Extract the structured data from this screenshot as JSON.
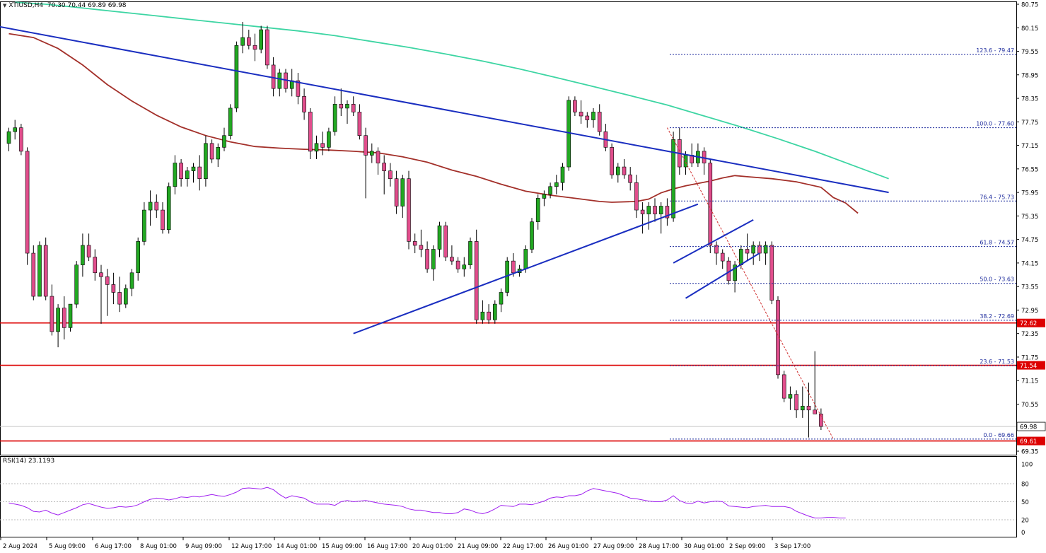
{
  "chart_data": {
    "type": "candlestick",
    "symbol": "XTIUSD,H4",
    "header_ohlc": "70.30 70.44 69.89 69.98",
    "price_axis": {
      "ylim": [
        69.35,
        80.75
      ],
      "ticks": [
        "80.75",
        "80.15",
        "79.55",
        "78.95",
        "78.35",
        "77.75",
        "77.15",
        "76.55",
        "75.95",
        "75.35",
        "74.75",
        "74.15",
        "73.55",
        "72.95",
        "72.35",
        "71.75",
        "71.15",
        "70.55",
        "69.95",
        "69.35"
      ]
    },
    "x_labels": [
      "2 Aug 2024",
      "5 Aug 09:00",
      "6 Aug 17:00",
      "8 Aug 01:00",
      "9 Aug 09:00",
      "12 Aug 17:00",
      "14 Aug 01:00",
      "15 Aug 09:00",
      "16 Aug 17:00",
      "20 Aug 01:00",
      "21 Aug 09:00",
      "22 Aug 17:00",
      "26 Aug 01:00",
      "27 Aug 09:00",
      "28 Aug 17:00",
      "30 Aug 01:00",
      "2 Sep 09:00",
      "3 Sep 17:00"
    ],
    "candles": [
      [
        77.2,
        77.6,
        77.0,
        77.5
      ],
      [
        77.5,
        77.8,
        77.3,
        77.6
      ],
      [
        77.6,
        77.7,
        76.9,
        77.0
      ],
      [
        77.0,
        77.1,
        74.1,
        74.4
      ],
      [
        74.4,
        74.6,
        73.2,
        73.3
      ],
      [
        73.3,
        74.7,
        73.3,
        74.6
      ],
      [
        74.6,
        74.8,
        73.2,
        73.3
      ],
      [
        73.3,
        73.6,
        72.3,
        72.4
      ],
      [
        72.4,
        73.1,
        72.0,
        73.0
      ],
      [
        73.0,
        73.3,
        72.2,
        72.5
      ],
      [
        72.5,
        73.1,
        72.4,
        73.1
      ],
      [
        73.1,
        74.2,
        73.0,
        74.1
      ],
      [
        74.1,
        74.9,
        73.8,
        74.6
      ],
      [
        74.6,
        74.9,
        74.2,
        74.3
      ],
      [
        74.3,
        74.5,
        73.7,
        73.9
      ],
      [
        73.9,
        74.1,
        72.6,
        73.8
      ],
      [
        73.8,
        74.0,
        72.8,
        73.6
      ],
      [
        73.6,
        73.9,
        73.1,
        73.4
      ],
      [
        73.4,
        73.8,
        72.9,
        73.1
      ],
      [
        73.1,
        73.6,
        73.0,
        73.5
      ],
      [
        73.5,
        74.0,
        73.3,
        73.9
      ],
      [
        73.9,
        74.8,
        73.7,
        74.7
      ],
      [
        74.7,
        75.7,
        74.6,
        75.5
      ],
      [
        75.5,
        76.0,
        75.1,
        75.7
      ],
      [
        75.7,
        75.9,
        75.3,
        75.5
      ],
      [
        75.5,
        75.7,
        74.9,
        75.0
      ],
      [
        75.0,
        76.2,
        74.9,
        76.1
      ],
      [
        76.1,
        76.9,
        75.9,
        76.7
      ],
      [
        76.7,
        76.8,
        76.1,
        76.3
      ],
      [
        76.3,
        76.6,
        76.1,
        76.5
      ],
      [
        76.5,
        76.7,
        76.2,
        76.6
      ],
      [
        76.6,
        76.9,
        76.0,
        76.3
      ],
      [
        76.3,
        77.4,
        76.1,
        77.2
      ],
      [
        77.2,
        77.3,
        76.7,
        76.8
      ],
      [
        76.8,
        77.2,
        76.6,
        77.1
      ],
      [
        77.1,
        77.6,
        77.0,
        77.4
      ],
      [
        77.4,
        78.2,
        77.3,
        78.1
      ],
      [
        78.1,
        79.8,
        78.0,
        79.7
      ],
      [
        79.7,
        80.3,
        79.5,
        79.9
      ],
      [
        79.9,
        80.1,
        79.6,
        79.7
      ],
      [
        79.7,
        80.0,
        79.3,
        79.6
      ],
      [
        79.6,
        80.2,
        79.5,
        80.1
      ],
      [
        80.1,
        80.2,
        79.1,
        79.2
      ],
      [
        79.2,
        79.4,
        78.4,
        78.6
      ],
      [
        78.6,
        79.1,
        78.4,
        79.0
      ],
      [
        79.0,
        79.1,
        78.5,
        78.6
      ],
      [
        78.6,
        79.1,
        78.4,
        78.8
      ],
      [
        78.8,
        79.0,
        78.2,
        78.4
      ],
      [
        78.4,
        78.6,
        77.8,
        78.0
      ],
      [
        78.0,
        78.1,
        76.8,
        77.0
      ],
      [
        77.0,
        77.4,
        76.8,
        77.2
      ],
      [
        77.2,
        77.5,
        76.9,
        77.1
      ],
      [
        77.1,
        77.6,
        77.0,
        77.5
      ],
      [
        77.5,
        78.4,
        77.4,
        78.2
      ],
      [
        78.2,
        78.6,
        77.9,
        78.1
      ],
      [
        78.1,
        78.3,
        77.7,
        78.2
      ],
      [
        78.2,
        78.4,
        77.9,
        78.0
      ],
      [
        78.0,
        78.2,
        77.3,
        77.4
      ],
      [
        77.4,
        77.6,
        75.8,
        76.9
      ],
      [
        76.9,
        77.2,
        76.7,
        77.0
      ],
      [
        77.0,
        77.1,
        76.4,
        76.7
      ],
      [
        76.7,
        76.9,
        75.9,
        76.5
      ],
      [
        76.5,
        76.7,
        76.1,
        76.3
      ],
      [
        76.3,
        76.5,
        75.4,
        75.6
      ],
      [
        75.6,
        76.4,
        75.3,
        76.3
      ],
      [
        76.3,
        76.5,
        74.5,
        74.7
      ],
      [
        74.7,
        74.9,
        74.4,
        74.6
      ],
      [
        74.6,
        75.0,
        74.3,
        74.5
      ],
      [
        74.5,
        74.7,
        73.9,
        74.0
      ],
      [
        74.0,
        74.6,
        73.7,
        74.5
      ],
      [
        74.5,
        75.2,
        74.3,
        75.1
      ],
      [
        75.1,
        75.2,
        74.2,
        74.3
      ],
      [
        74.3,
        74.6,
        74.1,
        74.2
      ],
      [
        74.2,
        74.3,
        73.9,
        74.0
      ],
      [
        74.0,
        74.3,
        73.8,
        74.1
      ],
      [
        74.1,
        74.8,
        74.0,
        74.7
      ],
      [
        74.7,
        75.0,
        72.6,
        72.7
      ],
      [
        72.7,
        73.2,
        72.6,
        72.9
      ],
      [
        72.9,
        73.1,
        72.6,
        72.7
      ],
      [
        72.7,
        73.2,
        72.6,
        73.1
      ],
      [
        73.1,
        73.5,
        72.9,
        73.4
      ],
      [
        73.4,
        74.3,
        73.3,
        74.2
      ],
      [
        74.2,
        74.4,
        73.8,
        73.9
      ],
      [
        73.9,
        74.1,
        73.8,
        74.0
      ],
      [
        74.0,
        74.6,
        73.9,
        74.5
      ],
      [
        74.5,
        75.3,
        74.4,
        75.2
      ],
      [
        75.2,
        75.9,
        75.0,
        75.8
      ],
      [
        75.8,
        76.0,
        75.6,
        75.9
      ],
      [
        75.9,
        76.2,
        75.8,
        76.1
      ],
      [
        76.1,
        76.4,
        75.9,
        76.2
      ],
      [
        76.2,
        76.7,
        76.0,
        76.6
      ],
      [
        76.6,
        78.4,
        76.5,
        78.3
      ],
      [
        78.3,
        78.4,
        77.9,
        78.0
      ],
      [
        78.0,
        78.3,
        77.7,
        77.9
      ],
      [
        77.9,
        78.0,
        77.6,
        77.8
      ],
      [
        77.8,
        78.1,
        77.6,
        78.0
      ],
      [
        78.0,
        78.2,
        77.4,
        77.5
      ],
      [
        77.5,
        77.7,
        77.0,
        77.1
      ],
      [
        77.1,
        77.2,
        76.3,
        76.4
      ],
      [
        76.4,
        76.7,
        76.2,
        76.6
      ],
      [
        76.6,
        76.8,
        76.3,
        76.4
      ],
      [
        76.4,
        76.6,
        76.0,
        76.2
      ],
      [
        76.2,
        76.4,
        75.3,
        75.5
      ],
      [
        75.5,
        75.7,
        74.9,
        75.4
      ],
      [
        75.4,
        75.7,
        75.0,
        75.6
      ],
      [
        75.6,
        75.8,
        75.2,
        75.4
      ],
      [
        75.4,
        75.7,
        74.9,
        75.6
      ],
      [
        75.6,
        75.8,
        75.1,
        75.3
      ],
      [
        75.3,
        77.5,
        75.2,
        77.3
      ],
      [
        77.3,
        77.6,
        76.4,
        76.6
      ],
      [
        76.6,
        77.0,
        76.4,
        76.9
      ],
      [
        76.9,
        77.2,
        76.6,
        76.7
      ],
      [
        76.7,
        77.2,
        76.6,
        77.0
      ],
      [
        77.0,
        77.1,
        76.4,
        76.7
      ],
      [
        76.7,
        76.8,
        74.4,
        74.6
      ],
      [
        74.6,
        74.7,
        74.1,
        74.4
      ],
      [
        74.4,
        74.5,
        74.0,
        74.2
      ],
      [
        74.2,
        74.3,
        73.6,
        73.7
      ],
      [
        73.7,
        74.2,
        73.4,
        74.1
      ],
      [
        74.1,
        74.6,
        74.0,
        74.5
      ],
      [
        74.5,
        74.9,
        74.2,
        74.4
      ],
      [
        74.4,
        74.7,
        74.1,
        74.6
      ],
      [
        74.6,
        74.7,
        74.2,
        74.4
      ],
      [
        74.4,
        74.7,
        74.1,
        74.6
      ],
      [
        74.6,
        74.7,
        73.1,
        73.2
      ],
      [
        73.2,
        73.3,
        71.2,
        71.3
      ],
      [
        71.3,
        71.4,
        70.6,
        70.7
      ],
      [
        70.7,
        71.0,
        70.4,
        70.8
      ],
      [
        70.8,
        70.9,
        70.2,
        70.4
      ],
      [
        70.4,
        71.0,
        70.2,
        70.5
      ],
      [
        70.5,
        71.1,
        69.7,
        70.4
      ],
      [
        70.4,
        71.9,
        70.3,
        70.3
      ],
      [
        70.3,
        70.44,
        69.89,
        69.98
      ]
    ],
    "ema_green": [
      [
        1,
        80.8
      ],
      [
        6,
        80.75
      ],
      [
        11,
        80.67
      ],
      [
        17,
        80.57
      ],
      [
        23,
        80.47
      ],
      [
        29,
        80.37
      ],
      [
        35,
        80.27
      ],
      [
        41,
        80.17
      ],
      [
        47,
        80.07
      ],
      [
        53,
        79.95
      ],
      [
        59,
        79.8
      ],
      [
        65,
        79.65
      ],
      [
        71,
        79.48
      ],
      [
        77,
        79.3
      ],
      [
        83,
        79.1
      ],
      [
        89,
        78.88
      ],
      [
        95,
        78.65
      ],
      [
        101,
        78.42
      ],
      [
        107,
        78.18
      ],
      [
        113,
        77.9
      ],
      [
        119,
        77.62
      ],
      [
        125,
        77.32
      ],
      [
        131,
        77.0
      ],
      [
        137,
        76.65
      ],
      [
        143,
        76.3
      ]
    ],
    "ema_brown": [
      [
        0,
        80.0
      ],
      [
        4,
        79.9
      ],
      [
        8,
        79.62
      ],
      [
        12,
        79.2
      ],
      [
        16,
        78.7
      ],
      [
        20,
        78.28
      ],
      [
        24,
        77.92
      ],
      [
        28,
        77.62
      ],
      [
        32,
        77.4
      ],
      [
        36,
        77.24
      ],
      [
        40,
        77.12
      ],
      [
        44,
        77.08
      ],
      [
        48,
        77.05
      ],
      [
        52,
        77.03
      ],
      [
        56,
        77.0
      ],
      [
        60,
        76.96
      ],
      [
        64,
        76.86
      ],
      [
        68,
        76.72
      ],
      [
        72,
        76.52
      ],
      [
        76,
        76.36
      ],
      [
        80,
        76.16
      ],
      [
        84,
        75.98
      ],
      [
        88,
        75.88
      ],
      [
        92,
        75.8
      ],
      [
        96,
        75.72
      ],
      [
        98,
        75.7
      ],
      [
        102,
        75.72
      ],
      [
        104,
        75.78
      ],
      [
        106,
        75.94
      ],
      [
        108,
        76.04
      ],
      [
        110,
        76.12
      ],
      [
        112,
        76.18
      ],
      [
        114,
        76.24
      ],
      [
        116,
        76.32
      ],
      [
        118,
        76.38
      ],
      [
        120,
        76.35
      ],
      [
        124,
        76.3
      ],
      [
        128,
        76.22
      ],
      [
        132,
        76.08
      ],
      [
        134,
        75.82
      ],
      [
        136,
        75.68
      ],
      [
        138,
        75.42
      ]
    ],
    "rsi_values": [
      48,
      46,
      44,
      40,
      34,
      33,
      36,
      31,
      28,
      32,
      36,
      40,
      45,
      47,
      44,
      41,
      39,
      40,
      42,
      41,
      42,
      45,
      50,
      54,
      56,
      55,
      53,
      55,
      58,
      57,
      59,
      58,
      60,
      62,
      60,
      59,
      62,
      66,
      72,
      73,
      72,
      71,
      74,
      70,
      62,
      56,
      60,
      58,
      56,
      50,
      46,
      46,
      46,
      44,
      50,
      52,
      50,
      51,
      52,
      50,
      48,
      46,
      45,
      44,
      42,
      38,
      36,
      36,
      34,
      32,
      32,
      30,
      30,
      32,
      38,
      36,
      32,
      30,
      33,
      38,
      44,
      43,
      42,
      46,
      46,
      45,
      48,
      51,
      56,
      58,
      57,
      60,
      60,
      62,
      68,
      72,
      70,
      68,
      66,
      64,
      60,
      56,
      55,
      53,
      51,
      50,
      50,
      53,
      60,
      52,
      48,
      47,
      51,
      48,
      50,
      51,
      50,
      43,
      42,
      41,
      40,
      42,
      43,
      44,
      42,
      42,
      42,
      40,
      34,
      30,
      26,
      23,
      23,
      24,
      24,
      23,
      23
    ],
    "fib_levels": [
      {
        "ratio": "123.6",
        "value": "79.47",
        "price": 79.47
      },
      {
        "ratio": "100.0",
        "value": "77.60",
        "price": 77.6
      },
      {
        "ratio": "76.4",
        "value": "75.73",
        "price": 75.73
      },
      {
        "ratio": "61.8",
        "value": "74.57",
        "price": 74.57
      },
      {
        "ratio": "50.0",
        "value": "73.63",
        "price": 73.63
      },
      {
        "ratio": "38.2",
        "value": "72.69",
        "price": 72.69
      },
      {
        "ratio": "23.6",
        "value": "71.53",
        "price": 71.53
      },
      {
        "ratio": "0.0",
        "value": "69.66",
        "price": 69.66
      }
    ],
    "horizontal_lines": [
      {
        "price": 72.62,
        "label": "72.62",
        "color": "#dd0000"
      },
      {
        "price": 71.54,
        "label": "71.54",
        "color": "#dd0000"
      },
      {
        "price": 69.61,
        "label": "69.61",
        "color": "#dd0000"
      }
    ],
    "current_price": {
      "price": 69.98,
      "label": "69.98"
    },
    "trend_lines": [
      {
        "name": "descending-resistance-line",
        "from": [
          -4,
          80.25
        ],
        "to": [
          143,
          75.95
        ]
      },
      {
        "name": "rising-support-line",
        "from": [
          56,
          72.35
        ],
        "to": [
          112,
          75.65
        ]
      },
      {
        "name": "channel-upper-line",
        "from": [
          108,
          74.15
        ],
        "to": [
          121,
          75.25
        ]
      },
      {
        "name": "channel-lower-line",
        "from": [
          110,
          73.25
        ],
        "to": [
          122,
          74.4
        ]
      }
    ],
    "fib_swing_line": {
      "from": [
        107,
        77.6
      ],
      "to": [
        134,
        69.66
      ]
    },
    "rsi": {
      "label": "RSI(14) 23.1193",
      "ylim": [
        0,
        100
      ],
      "levels": [
        "80",
        "50",
        "20"
      ],
      "top_label": "100",
      "bottom_label": "0"
    },
    "colors": {
      "bull": "#22a822",
      "bear": "#e14d8c",
      "wick": "#000000",
      "ema_green": "#3dd5a3",
      "ema_brown": "#a3302a",
      "trend": "#1a2ec0",
      "fib": "#1c2a9c",
      "fib_text": "#1c2a9c",
      "support": "#dd0000",
      "rsi": "#a020f0"
    }
  }
}
